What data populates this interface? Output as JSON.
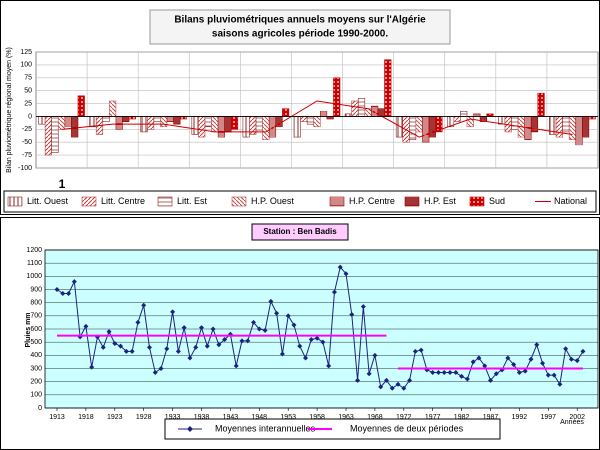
{
  "chart_data": [
    {
      "type": "bar",
      "title": "Bilans pluviométriques annuels moyens sur l'Algérie",
      "subtitle": "saisons agricoles période 1990-2000.",
      "y_label": "Bilan pluviométrique régional moyen (%)",
      "annotation": "1",
      "categories": [
        null,
        null,
        null,
        null,
        null,
        null,
        null,
        null,
        null,
        null,
        null
      ],
      "ylim": [
        -100,
        125
      ],
      "yticks": [
        -100,
        -75,
        -50,
        -25,
        0,
        25,
        50,
        75,
        100,
        125
      ],
      "grid": true,
      "legend": "bottom",
      "series": [
        {
          "name": "Litt. Ouest",
          "color": "#8b2323",
          "values": [
            -15,
            -20,
            -30,
            -35,
            -40,
            -40,
            5,
            -40,
            -20,
            -15,
            -35
          ]
        },
        {
          "name": "Litt. Centre",
          "color": "#c04040",
          "values": [
            -75,
            -35,
            -25,
            -40,
            -35,
            -10,
            30,
            -50,
            -10,
            -30,
            -40
          ]
        },
        {
          "name": "Litt. Est",
          "color": "#8b2323",
          "values": [
            -70,
            -10,
            -10,
            -20,
            -30,
            -15,
            35,
            -45,
            10,
            -25,
            -30
          ]
        },
        {
          "name": "H.P. Ouest",
          "color": "#c05050",
          "values": [
            -25,
            30,
            -20,
            -30,
            -45,
            -20,
            15,
            -30,
            -20,
            -40,
            -45
          ]
        },
        {
          "name": "H.P. Centre",
          "color": "#a01010",
          "values": [
            -20,
            -25,
            -10,
            -40,
            -40,
            10,
            20,
            -50,
            5,
            -45,
            -55
          ]
        },
        {
          "name": "H.P. Est",
          "color": "#900000",
          "values": [
            -40,
            -10,
            -15,
            -30,
            -20,
            -5,
            15,
            -40,
            -10,
            -30,
            -40
          ]
        },
        {
          "name": "Sud",
          "color": "#cc0000",
          "values": [
            40,
            -5,
            -5,
            -25,
            15,
            75,
            110,
            -30,
            5,
            45,
            -5
          ]
        },
        {
          "name": "National",
          "color": "#cc0000",
          "type": "line",
          "values": [
            -25,
            -15,
            -15,
            -30,
            -30,
            30,
            15,
            -40,
            -5,
            -20,
            -35
          ]
        }
      ]
    },
    {
      "type": "line",
      "title": "Station : Ben Badis",
      "y_label": "Pluies mm",
      "x_label": "Années",
      "categories": [
        "1913",
        null,
        null,
        null,
        null,
        "1918",
        null,
        null,
        null,
        null,
        "1923",
        null,
        null,
        null,
        null,
        "1928",
        null,
        null,
        null,
        null,
        "1933",
        null,
        null,
        null,
        null,
        "1938",
        null,
        null,
        null,
        null,
        "1943",
        null,
        null,
        null,
        null,
        "1948",
        null,
        null,
        null,
        null,
        "1953",
        null,
        null,
        null,
        null,
        "1958",
        null,
        null,
        null,
        null,
        "1963",
        null,
        null,
        null,
        null,
        "1968",
        null,
        null,
        null,
        null,
        "1972",
        null,
        null,
        null,
        null,
        "1977",
        null,
        null,
        null,
        null,
        "1982",
        null,
        null,
        null,
        null,
        "1987",
        null,
        null,
        null,
        null,
        "1992",
        null,
        null,
        null,
        null,
        "1997",
        null,
        null,
        null,
        null,
        "2002",
        null
      ],
      "ylim": [
        0,
        1200
      ],
      "yticks": [
        0,
        100,
        200,
        300,
        400,
        500,
        600,
        700,
        800,
        900,
        1000,
        1100,
        1200
      ],
      "grid": true,
      "legend": "bottom",
      "background": "#ccffff",
      "series": [
        {
          "name": "Moyennes interannuelles",
          "color": "#1a237e",
          "marker": "diamond",
          "values": [
            900,
            870,
            870,
            960,
            540,
            620,
            310,
            540,
            460,
            580,
            490,
            470,
            430,
            430,
            650,
            780,
            460,
            270,
            300,
            450,
            730,
            430,
            610,
            380,
            460,
            610,
            470,
            600,
            480,
            520,
            560,
            320,
            510,
            510,
            650,
            600,
            590,
            810,
            720,
            410,
            700,
            630,
            470,
            380,
            520,
            530,
            500,
            320,
            880,
            1070,
            1020,
            710,
            210,
            770,
            260,
            400,
            160,
            210,
            150,
            180,
            150,
            210,
            430,
            440,
            290,
            270,
            270,
            270,
            270,
            270,
            240,
            220,
            350,
            380,
            320,
            210,
            260,
            290,
            380,
            330,
            270,
            280,
            370,
            480,
            340,
            250,
            250,
            180,
            450,
            370,
            360,
            430
          ]
        },
        {
          "name": "Moyennes de deux périodes",
          "color": "#ff00ff",
          "values": [
            550,
            550,
            550,
            550,
            550,
            550,
            550,
            550,
            550,
            550,
            550,
            550,
            550,
            550,
            550,
            550,
            550,
            550,
            550,
            550,
            550,
            550,
            550,
            550,
            550,
            550,
            550,
            550,
            550,
            550,
            550,
            550,
            550,
            550,
            550,
            550,
            550,
            550,
            550,
            550,
            550,
            550,
            550,
            550,
            550,
            550,
            550,
            550,
            550,
            550,
            550,
            550,
            550,
            550,
            550,
            550,
            550,
            550,
            null,
            300,
            300,
            300,
            300,
            300,
            300,
            300,
            300,
            300,
            300,
            300,
            300,
            300,
            300,
            300,
            300,
            300,
            300,
            300,
            300,
            300,
            300,
            300,
            300,
            300,
            300,
            300,
            300,
            300,
            300,
            300,
            300,
            300
          ]
        }
      ]
    }
  ]
}
